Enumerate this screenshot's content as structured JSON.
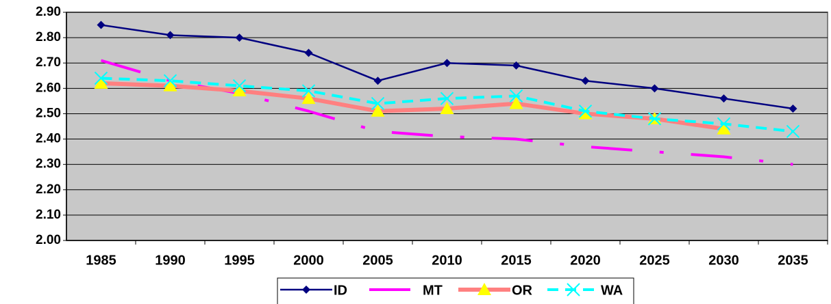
{
  "chart_data": {
    "type": "line",
    "categories": [
      "1985",
      "1990",
      "1995",
      "2000",
      "2005",
      "2010",
      "2015",
      "2020",
      "2025",
      "2030",
      "2035"
    ],
    "series": [
      {
        "name": "ID",
        "color": "#000080",
        "marker": "diamond",
        "line_style": "solid",
        "values": [
          2.85,
          2.81,
          2.8,
          2.74,
          2.63,
          2.7,
          2.69,
          2.63,
          2.6,
          2.56,
          2.52
        ]
      },
      {
        "name": "MT",
        "color": "#ff00ff",
        "marker": "none",
        "line_style": "dash-dot",
        "values": [
          2.71,
          2.63,
          2.58,
          2.51,
          2.43,
          2.41,
          2.4,
          2.37,
          2.35,
          2.33,
          2.3
        ]
      },
      {
        "name": "OR",
        "color": "#ff8080",
        "marker": "triangle",
        "line_style": "thick",
        "values": [
          2.62,
          2.61,
          2.59,
          2.56,
          2.51,
          2.52,
          2.54,
          2.5,
          2.48,
          2.44,
          null
        ]
      },
      {
        "name": "WA",
        "color": "#00ffff",
        "marker": "x",
        "line_style": "dashed",
        "values": [
          2.64,
          2.63,
          2.61,
          2.59,
          2.54,
          2.56,
          2.57,
          2.51,
          2.48,
          2.46,
          2.43
        ]
      }
    ],
    "ylim": [
      2.0,
      2.9
    ],
    "yticks": [
      {
        "value": 2.0,
        "label": "2.00"
      },
      {
        "value": 2.1,
        "label": "2.10"
      },
      {
        "value": 2.2,
        "label": "2.20"
      },
      {
        "value": 2.3,
        "label": "2.30"
      },
      {
        "value": 2.4,
        "label": "2.40"
      },
      {
        "value": 2.5,
        "label": "2.50"
      },
      {
        "value": 2.6,
        "label": "2.60"
      },
      {
        "value": 2.7,
        "label": "2.70"
      },
      {
        "value": 2.8,
        "label": "2.80"
      },
      {
        "value": 2.9,
        "label": "2.90"
      }
    ],
    "grid": true,
    "legend": "bottom",
    "plot_background": "#c8c8c8"
  }
}
